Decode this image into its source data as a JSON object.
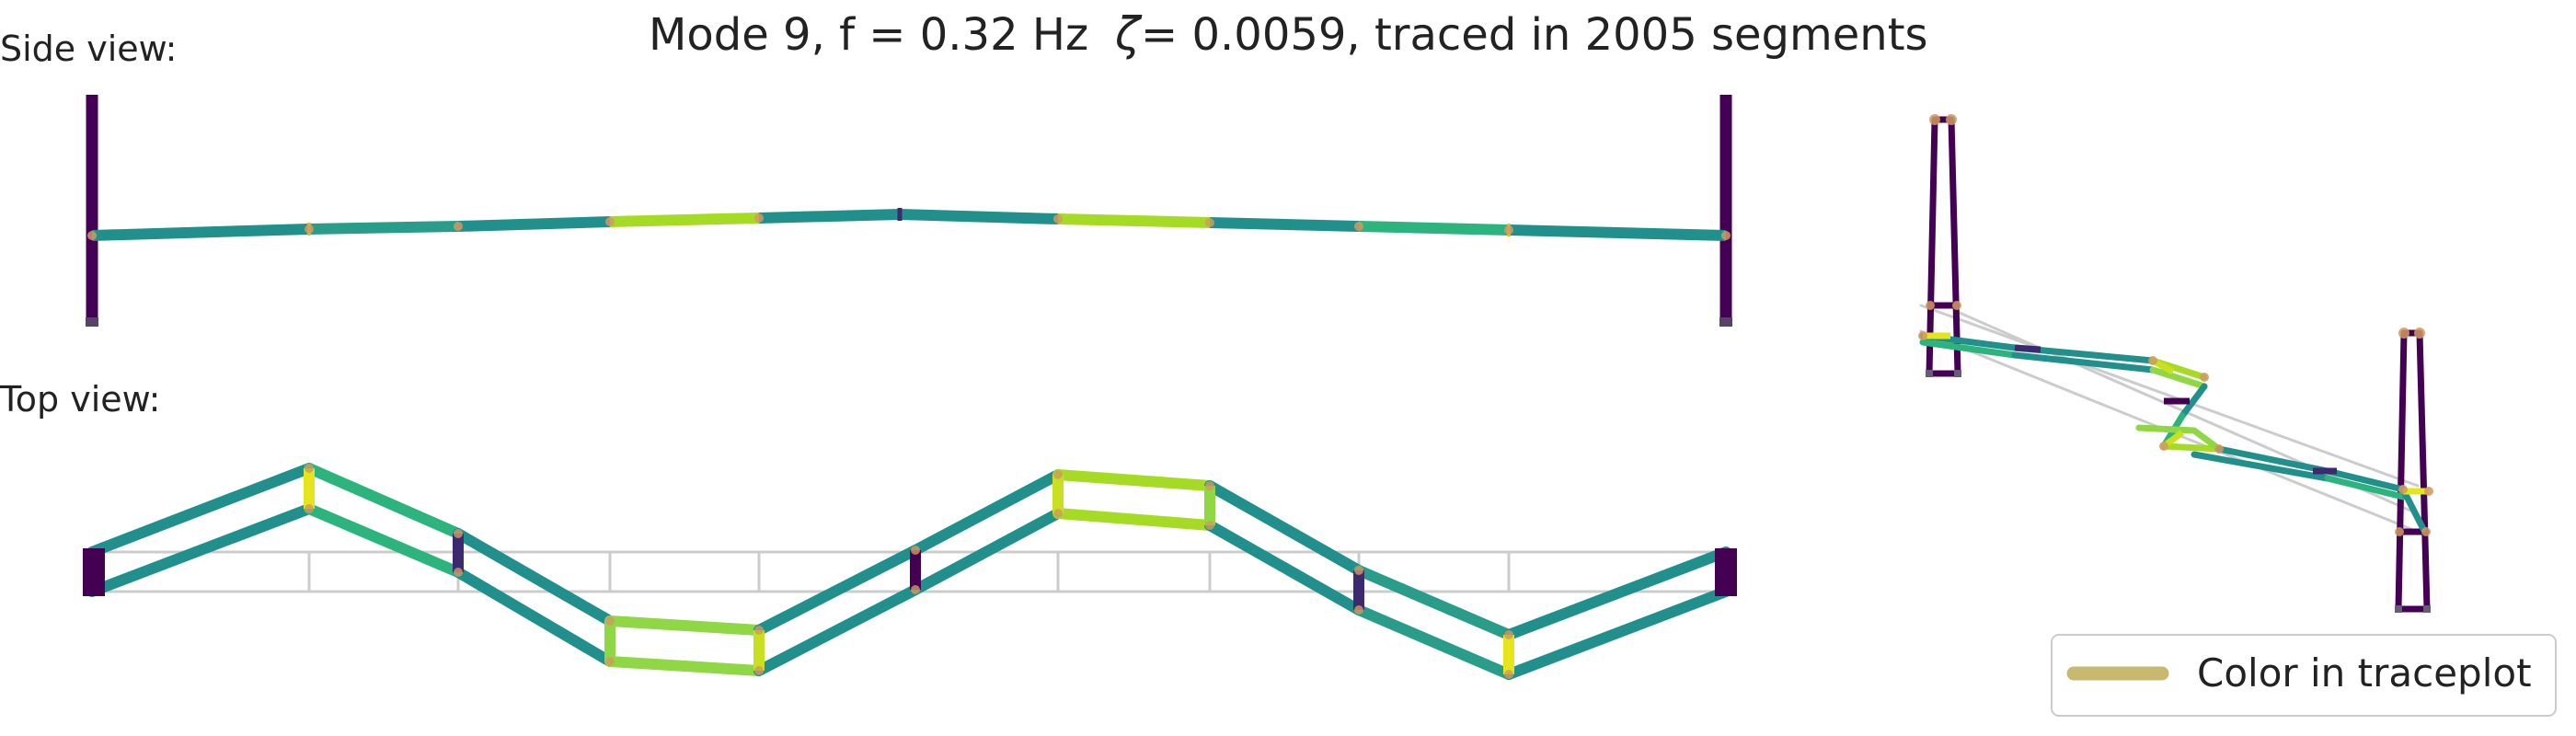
{
  "title": {
    "mode": "Mode 9, f = 0.32 Hz",
    "zeta_symbol": "ζ",
    "damping": " = 0.0059,  traced in 2005 segments"
  },
  "labels": {
    "side_view": "Side view:",
    "top_view": "Top view:"
  },
  "legend": {
    "label": "Color in traceplot",
    "swatch_color": "#c8b870"
  },
  "colors": {
    "tower": "#440154",
    "deep_purple": "#3b2a6f",
    "teal": "#21908d",
    "green": "#2db37d",
    "lime": "#a6db25",
    "bright_lime": "#8fd744",
    "yellow": "#e6e41a",
    "node": "#e0a060",
    "ghost": "#cccccc"
  },
  "structure": {
    "panel_count": 11,
    "tower_count": 2
  }
}
